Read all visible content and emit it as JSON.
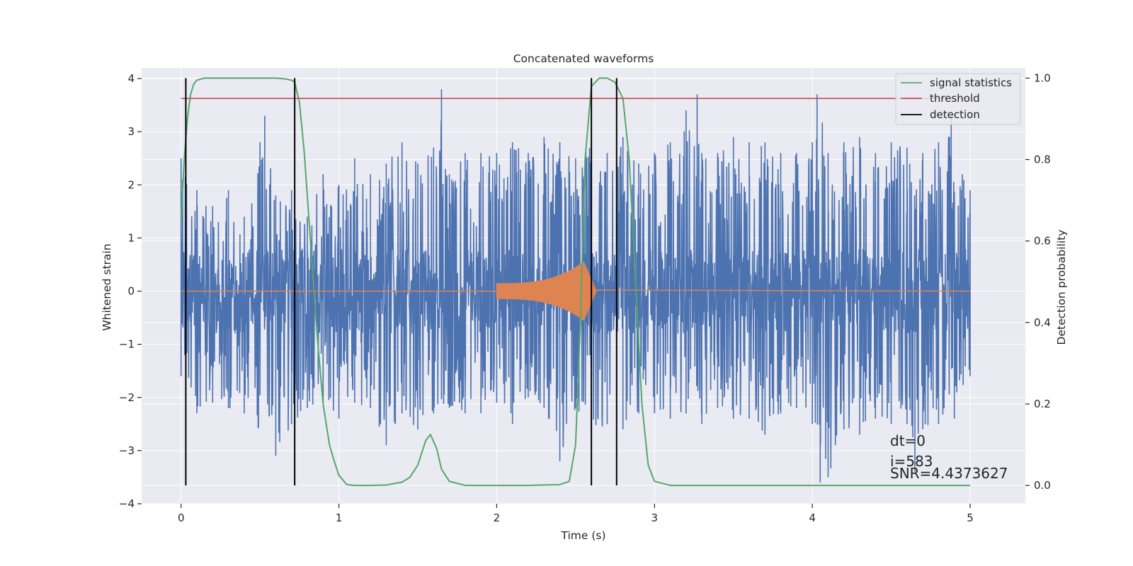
{
  "chart_data": {
    "type": "line",
    "title": "Concatenated waveforms",
    "xlabel": "Time (s)",
    "ylabel": "Whitened strain",
    "y2label": "Detection probability",
    "xlim": [
      -0.25,
      5.35
    ],
    "ylim": [
      -4.0,
      4.2
    ],
    "y2lim": [
      -0.045,
      1.025
    ],
    "x_ticks": [
      0,
      1,
      2,
      3,
      4,
      5
    ],
    "y_ticks": [
      -4,
      -3,
      -2,
      -1,
      0,
      1,
      2,
      3,
      4
    ],
    "y2_ticks": [
      0.0,
      0.2,
      0.4,
      0.6,
      0.8,
      1.0
    ],
    "x_tick_labels": [
      "0",
      "1",
      "2",
      "3",
      "4",
      "5"
    ],
    "y_tick_labels": [
      "−4",
      "−3",
      "−2",
      "−1",
      "0",
      "1",
      "2",
      "3",
      "4"
    ],
    "y2_tick_labels": [
      "0.0",
      "0.2",
      "0.4",
      "0.6",
      "0.8",
      "1.0"
    ],
    "grid": true,
    "legend_position": "top-right",
    "legend": [
      "signal statistics",
      "threshold",
      "detection"
    ],
    "colors": {
      "background": "#EAEAF2",
      "grid": "#FFFFFF",
      "strain": "#4C72B0",
      "injection": "#DD8452",
      "signal_statistics": "#55A868",
      "threshold": "#C44E52",
      "detection": "#000000"
    },
    "strain_noise": {
      "x_range": [
        0,
        5
      ],
      "core_band": [
        -0.8,
        0.8
      ],
      "peaks": [
        [
          0.0,
          2.5
        ],
        [
          0.1,
          1.9
        ],
        [
          0.2,
          1.6
        ],
        [
          0.3,
          1.9
        ],
        [
          0.4,
          1.4
        ],
        [
          0.5,
          2.8
        ],
        [
          0.53,
          3.3
        ],
        [
          0.6,
          1.8
        ],
        [
          0.7,
          1.9
        ],
        [
          0.8,
          1.4
        ],
        [
          0.9,
          2.2
        ],
        [
          1.0,
          2.0
        ],
        [
          1.1,
          2.5
        ],
        [
          1.2,
          2.2
        ],
        [
          1.3,
          2.4
        ],
        [
          1.4,
          2.8
        ],
        [
          1.5,
          2.4
        ],
        [
          1.6,
          2.7
        ],
        [
          1.65,
          3.8
        ],
        [
          1.7,
          2.2
        ],
        [
          1.8,
          2.6
        ],
        [
          1.9,
          2.6
        ],
        [
          2.0,
          2.6
        ],
        [
          2.1,
          2.8
        ],
        [
          2.2,
          2.6
        ],
        [
          2.3,
          2.9
        ],
        [
          2.4,
          2.8
        ],
        [
          2.5,
          2.5
        ],
        [
          2.6,
          2.8
        ],
        [
          2.7,
          2.6
        ],
        [
          2.8,
          2.9
        ],
        [
          2.9,
          2.4
        ],
        [
          3.0,
          2.6
        ],
        [
          3.1,
          2.8
        ],
        [
          3.2,
          3.4
        ],
        [
          3.27,
          3.7
        ],
        [
          3.3,
          2.6
        ],
        [
          3.4,
          2.6
        ],
        [
          3.5,
          2.9
        ],
        [
          3.6,
          2.8
        ],
        [
          3.7,
          2.8
        ],
        [
          3.8,
          2.6
        ],
        [
          3.9,
          2.6
        ],
        [
          4.0,
          2.8
        ],
        [
          4.03,
          3.7
        ],
        [
          4.1,
          2.6
        ],
        [
          4.2,
          2.8
        ],
        [
          4.3,
          2.9
        ],
        [
          4.4,
          2.6
        ],
        [
          4.5,
          2.8
        ],
        [
          4.6,
          2.7
        ],
        [
          4.7,
          2.6
        ],
        [
          4.8,
          2.8
        ],
        [
          4.88,
          3.3
        ],
        [
          4.95,
          2.2
        ],
        [
          5.0,
          1.9
        ]
      ],
      "troughs": [
        [
          0.0,
          -1.6
        ],
        [
          0.1,
          -2.3
        ],
        [
          0.2,
          -2.1
        ],
        [
          0.3,
          -2.2
        ],
        [
          0.4,
          -2.3
        ],
        [
          0.6,
          -3.1
        ],
        [
          0.7,
          -2.5
        ],
        [
          0.8,
          -2.2
        ],
        [
          0.9,
          -2.1
        ],
        [
          1.0,
          -2.4
        ],
        [
          1.1,
          -2.1
        ],
        [
          1.2,
          -2.2
        ],
        [
          1.3,
          -2.9
        ],
        [
          1.4,
          -2.3
        ],
        [
          1.5,
          -2.6
        ],
        [
          1.6,
          -2.3
        ],
        [
          1.7,
          -2.2
        ],
        [
          1.8,
          -2.3
        ],
        [
          1.9,
          -2.3
        ],
        [
          2.0,
          -2.1
        ],
        [
          2.1,
          -2.5
        ],
        [
          2.2,
          -2.0
        ],
        [
          2.3,
          -2.2
        ],
        [
          2.4,
          -3.2
        ],
        [
          2.5,
          -2.2
        ],
        [
          2.6,
          -2.7
        ],
        [
          2.7,
          -2.5
        ],
        [
          2.8,
          -2.6
        ],
        [
          2.9,
          -2.3
        ],
        [
          3.0,
          -2.3
        ],
        [
          3.1,
          -2.4
        ],
        [
          3.2,
          -2.3
        ],
        [
          3.3,
          -2.5
        ],
        [
          3.4,
          -2.2
        ],
        [
          3.5,
          -2.4
        ],
        [
          3.6,
          -2.4
        ],
        [
          3.7,
          -2.7
        ],
        [
          3.8,
          -2.3
        ],
        [
          3.9,
          -2.2
        ],
        [
          4.0,
          -2.5
        ],
        [
          4.05,
          -3.6
        ],
        [
          4.1,
          -3.5
        ],
        [
          4.2,
          -2.6
        ],
        [
          4.3,
          -2.7
        ],
        [
          4.4,
          -2.4
        ],
        [
          4.5,
          -2.5
        ],
        [
          4.6,
          -2.5
        ],
        [
          4.65,
          -3.4
        ],
        [
          4.7,
          -2.6
        ],
        [
          4.8,
          -2.5
        ],
        [
          4.9,
          -2.4
        ],
        [
          5.0,
          -1.6
        ]
      ]
    },
    "injection": {
      "start": 2.0,
      "end": 2.55,
      "amplitude_start": 0.15,
      "amplitude_peak": 0.55,
      "post_amplitude": 0.02
    },
    "signal_statistics": {
      "x": [
        0.0,
        0.02,
        0.04,
        0.06,
        0.08,
        0.1,
        0.15,
        0.2,
        0.4,
        0.6,
        0.66,
        0.7,
        0.72,
        0.75,
        0.78,
        0.82,
        0.86,
        0.9,
        0.94,
        0.97,
        1.0,
        1.05,
        1.1,
        1.2,
        1.3,
        1.4,
        1.45,
        1.5,
        1.55,
        1.58,
        1.62,
        1.65,
        1.7,
        1.8,
        2.0,
        2.2,
        2.4,
        2.46,
        2.5,
        2.53,
        2.56,
        2.6,
        2.65,
        2.7,
        2.75,
        2.8,
        2.84,
        2.88,
        2.92,
        2.96,
        3.0,
        3.1,
        3.5,
        4.0,
        4.5,
        5.0
      ],
      "y": [
        0.65,
        0.8,
        0.9,
        0.96,
        0.985,
        0.995,
        1.0,
        1.0,
        1.0,
        1.0,
        0.998,
        0.995,
        0.99,
        0.94,
        0.82,
        0.6,
        0.38,
        0.2,
        0.1,
        0.06,
        0.025,
        0.002,
        0.0,
        0.0,
        0.001,
        0.008,
        0.02,
        0.05,
        0.11,
        0.125,
        0.09,
        0.04,
        0.01,
        0.0,
        0.0,
        0.0,
        0.002,
        0.01,
        0.1,
        0.4,
        0.8,
        0.98,
        1.0,
        1.0,
        0.99,
        0.95,
        0.8,
        0.5,
        0.2,
        0.05,
        0.01,
        0.0,
        0.0,
        0.0,
        0.0,
        0.0
      ]
    },
    "threshold": {
      "value": 0.95,
      "x_range": [
        0,
        5
      ]
    },
    "detections": [
      0.03,
      0.72,
      2.6,
      2.76
    ],
    "annotations": [
      "dt=0",
      "i=583",
      "SNR=4.4373627"
    ]
  }
}
